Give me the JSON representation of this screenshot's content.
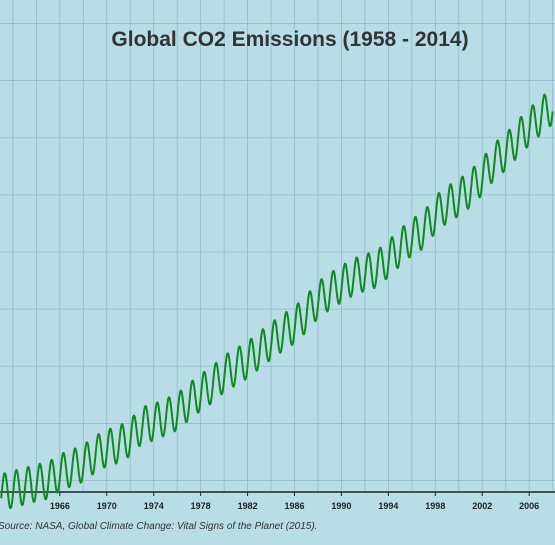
{
  "chart_data": {
    "type": "line",
    "title": "Global CO2 Emissions (1958 - 2014)",
    "xlabel": "",
    "ylabel": "",
    "x_ticks": [
      1966,
      1970,
      1974,
      1978,
      1982,
      1986,
      1990,
      1994,
      1998,
      2002,
      2006
    ],
    "xlim": [
      1960.9,
      2008.2
    ],
    "ylim": [
      318,
      402
    ],
    "grid": true,
    "line_color": "#0f8a1c",
    "background_color": "#b8dde6",
    "grid_color": "#8fbccb",
    "series": [
      {
        "x": [
          1961,
          1962,
          1963,
          1964,
          1965,
          1966,
          1967,
          1968,
          1969,
          1970,
          1971,
          1972,
          1973,
          1974,
          1975,
          1976,
          1977,
          1978,
          1979,
          1980,
          1981,
          1982,
          1983,
          1984,
          1985,
          1986,
          1987,
          1988,
          1989,
          1990,
          1991,
          1992,
          1993,
          1994,
          1995,
          1996,
          1997,
          1998,
          1999,
          2000,
          2001,
          2002,
          2003,
          2004,
          2005,
          2006,
          2007,
          2008
        ],
        "y": [
          317.9,
          318.5,
          319.0,
          319.6,
          320.0,
          321.4,
          322.2,
          323.0,
          324.6,
          325.7,
          326.3,
          327.5,
          329.7,
          330.2,
          331.1,
          332.0,
          333.8,
          335.4,
          336.8,
          338.7,
          339.9,
          341.1,
          342.8,
          344.4,
          345.9,
          347.2,
          349.2,
          351.6,
          353.1,
          354.4,
          355.6,
          356.4,
          357.0,
          358.8,
          360.8,
          362.6,
          363.8,
          366.6,
          368.3,
          369.5,
          371.1,
          373.2,
          375.8,
          377.5,
          379.8,
          381.9,
          383.8,
          385.6
        ],
        "seasonal_amplitude": 3.2
      }
    ]
  },
  "caption": "Source: NASA, Global Climate Change: Vital Signs of the Planet (2015)."
}
